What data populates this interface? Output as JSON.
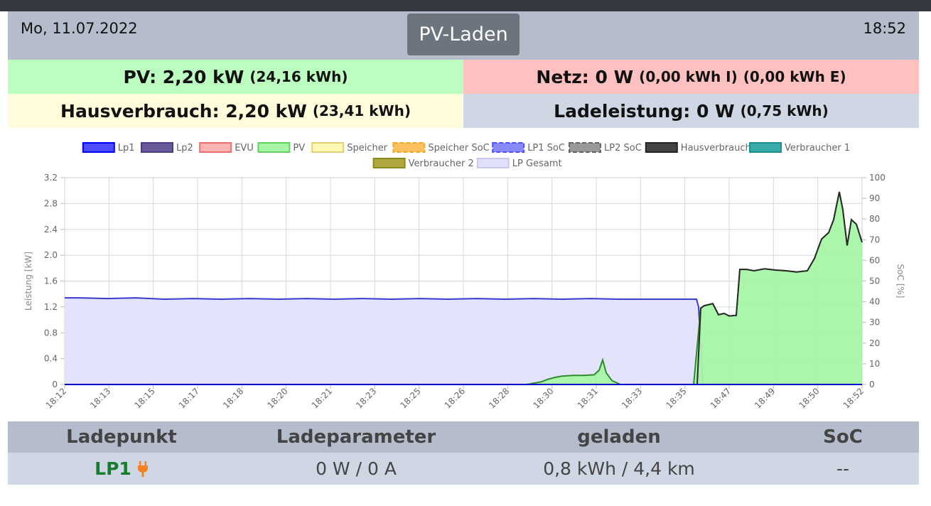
{
  "header": {
    "date": "Mo, 11.07.2022",
    "mode_button": "PV-Laden",
    "time": "18:52"
  },
  "status": {
    "pv": {
      "label": "PV: 2,20 kW",
      "energy": "(24,16 kWh)"
    },
    "netz": {
      "label": "Netz: 0 W",
      "import": "(0,00 kWh I)",
      "export": "(0,00 kWh E)"
    },
    "haus": {
      "label": "Hausverbrauch: 2,20 kW",
      "energy": "(23,41 kWh)"
    },
    "lade": {
      "label": "Ladeleistung: 0 W",
      "energy": "(0,75 kWh)"
    }
  },
  "chart_data": {
    "type": "line",
    "x": [
      "18:12",
      "18:13",
      "18:15",
      "18:17",
      "18:18",
      "18:20",
      "18:21",
      "18:23",
      "18:25",
      "18:26",
      "18:28",
      "18:30",
      "18:31",
      "18:33",
      "18:35",
      "18:47",
      "18:49",
      "18:50",
      "18:52"
    ],
    "ylabel": "Leistung [kW]",
    "y2label": "SoC [%]",
    "ylim": [
      0,
      3.2
    ],
    "y2lim": [
      0,
      100
    ],
    "yticks": [
      "0",
      "0.4",
      "0.8",
      "1.2",
      "1.6",
      "2.0",
      "2.4",
      "2.8",
      "3.2"
    ],
    "y2ticks": [
      "0",
      "10",
      "20",
      "30",
      "40",
      "50",
      "60",
      "70",
      "80",
      "90",
      "100"
    ],
    "grid": true,
    "legend_placement": "top",
    "legend": [
      {
        "name": "Lp1",
        "color": "#0000ff",
        "fill": "#4d4dff",
        "style": "solid"
      },
      {
        "name": "Lp2",
        "color": "#4b3b82",
        "fill": "#6a5a99",
        "style": "solid"
      },
      {
        "name": "EVU",
        "color": "#e87070",
        "fill": "#ffb3b3",
        "style": "solid"
      },
      {
        "name": "PV",
        "color": "#60d060",
        "fill": "#a8f5a8",
        "style": "solid"
      },
      {
        "name": "Speicher",
        "color": "#e0d070",
        "fill": "#fdf8b5",
        "style": "solid"
      },
      {
        "name": "Speicher SoC",
        "color": "#f5a623",
        "fill": "#ffc062",
        "style": "dashed"
      },
      {
        "name": "LP1 SoC",
        "color": "#5050ff",
        "fill": "#8888ff",
        "style": "dashed"
      },
      {
        "name": "LP2 SoC",
        "color": "#666666",
        "fill": "#999999",
        "style": "dashed"
      },
      {
        "name": "Hausverbrauch",
        "color": "#222222",
        "fill": "#444444",
        "style": "solid"
      },
      {
        "name": "Verbraucher 1",
        "color": "#1a8f8f",
        "fill": "#3aabab",
        "style": "solid"
      },
      {
        "name": "Verbraucher 2",
        "color": "#8a8a1a",
        "fill": "#b0a83e",
        "style": "solid"
      },
      {
        "name": "LP Gesamt",
        "color": "#c8c8f0",
        "fill": "#e0e0fa",
        "style": "solid"
      }
    ],
    "series": [
      {
        "name": "LP Gesamt",
        "color": "#3a3ad0",
        "fill": "#e2e2fb",
        "points": [
          [
            0,
            1.34
          ],
          [
            20,
            1.34
          ],
          [
            60,
            1.33
          ],
          [
            100,
            1.34
          ],
          [
            140,
            1.32
          ],
          [
            180,
            1.33
          ],
          [
            220,
            1.32
          ],
          [
            260,
            1.33
          ],
          [
            300,
            1.32
          ],
          [
            340,
            1.33
          ],
          [
            380,
            1.32
          ],
          [
            420,
            1.33
          ],
          [
            460,
            1.32
          ],
          [
            500,
            1.33
          ],
          [
            540,
            1.32
          ],
          [
            580,
            1.33
          ],
          [
            620,
            1.32
          ],
          [
            660,
            1.33
          ],
          [
            700,
            1.32
          ],
          [
            740,
            1.33
          ],
          [
            780,
            1.32
          ],
          [
            820,
            1.32
          ],
          [
            860,
            1.32
          ],
          [
            889,
            1.32
          ],
          [
            892,
            1.2
          ],
          [
            898,
            0.0
          ],
          [
            1122,
            0.0
          ]
        ]
      },
      {
        "name": "PV",
        "color": "#2e8b2e",
        "fill": "#a8f5a8",
        "points": [
          [
            650,
            0.0
          ],
          [
            670,
            0.04
          ],
          [
            680,
            0.08
          ],
          [
            690,
            0.11
          ],
          [
            700,
            0.13
          ],
          [
            715,
            0.14
          ],
          [
            730,
            0.14
          ],
          [
            745,
            0.15
          ],
          [
            752,
            0.22
          ],
          [
            757,
            0.38
          ],
          [
            762,
            0.18
          ],
          [
            770,
            0.06
          ],
          [
            782,
            0.0
          ],
          [
            885,
            0.0
          ],
          [
            895,
            1.18
          ],
          [
            900,
            1.22
          ],
          [
            912,
            1.25
          ],
          [
            920,
            1.08
          ],
          [
            928,
            1.1
          ],
          [
            935,
            1.06
          ],
          [
            945,
            1.07
          ],
          [
            950,
            1.78
          ],
          [
            960,
            1.78
          ],
          [
            970,
            1.76
          ],
          [
            985,
            1.79
          ],
          [
            1000,
            1.77
          ],
          [
            1015,
            1.76
          ],
          [
            1030,
            1.74
          ],
          [
            1045,
            1.76
          ],
          [
            1055,
            1.95
          ],
          [
            1065,
            2.25
          ],
          [
            1075,
            2.35
          ],
          [
            1082,
            2.55
          ],
          [
            1090,
            2.98
          ],
          [
            1095,
            2.7
          ],
          [
            1101,
            2.15
          ],
          [
            1107,
            2.55
          ],
          [
            1114,
            2.48
          ],
          [
            1122,
            2.2
          ]
        ]
      },
      {
        "name": "Hausverbrauch",
        "color": "#2a2a2a",
        "fill": "none",
        "points": [
          [
            890,
            0.0
          ],
          [
            895,
            1.18
          ],
          [
            900,
            1.22
          ],
          [
            912,
            1.25
          ],
          [
            920,
            1.08
          ],
          [
            928,
            1.1
          ],
          [
            935,
            1.06
          ],
          [
            945,
            1.07
          ],
          [
            950,
            1.78
          ],
          [
            960,
            1.78
          ],
          [
            970,
            1.76
          ],
          [
            985,
            1.79
          ],
          [
            1000,
            1.77
          ],
          [
            1015,
            1.76
          ],
          [
            1030,
            1.74
          ],
          [
            1045,
            1.76
          ],
          [
            1055,
            1.95
          ],
          [
            1065,
            2.25
          ],
          [
            1075,
            2.35
          ],
          [
            1082,
            2.55
          ],
          [
            1090,
            2.98
          ],
          [
            1095,
            2.7
          ],
          [
            1101,
            2.15
          ],
          [
            1107,
            2.55
          ],
          [
            1114,
            2.48
          ],
          [
            1122,
            2.2
          ]
        ]
      },
      {
        "name": "Lp1",
        "color": "#0000cc",
        "fill": "none",
        "points": [
          [
            0,
            0.0
          ],
          [
            1122,
            0.0
          ]
        ]
      }
    ]
  },
  "table": {
    "headers": [
      "Ladepunkt",
      "Ladeparameter",
      "geladen",
      "SoC"
    ],
    "rows": [
      {
        "name": "LP1",
        "parameter": "0 W / 0 A",
        "charged": "0,8 kWh / 4,4 km",
        "soc": "--",
        "plug_color": "#f08020"
      }
    ]
  }
}
